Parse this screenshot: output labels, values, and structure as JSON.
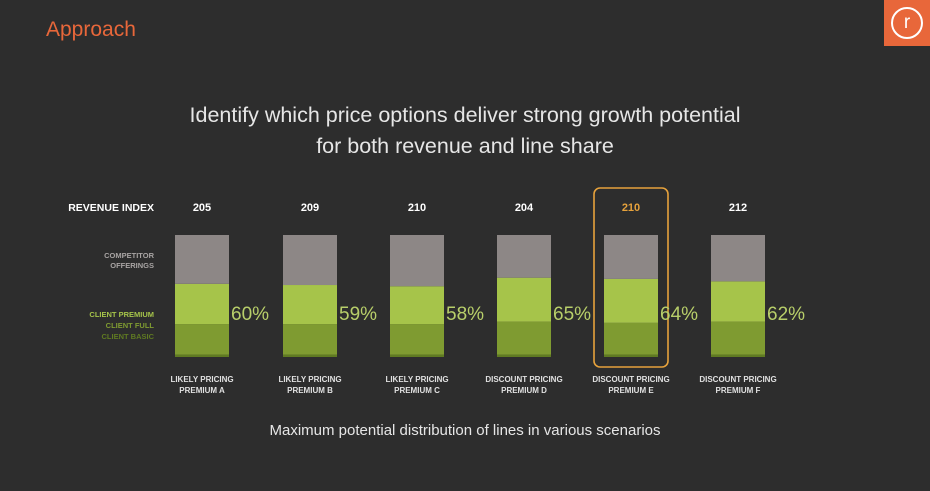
{
  "header": {
    "section_title": "Approach",
    "logo_letter": "r"
  },
  "headline": {
    "line1": "Identify which price options deliver strong growth potential",
    "line2": "for both revenue and line share"
  },
  "footnote": "Maximum potential distribution of lines in various scenarios",
  "colors": {
    "background": "#2d2d2d",
    "accent": "#e8673a",
    "competitor": "#8d8786",
    "client_premium": "#a6c44a",
    "client_full": "#7f9b31",
    "client_basic": "#5f7a22",
    "highlight": "#e6a23c",
    "percent_text": "#b8cf6a",
    "label_text": "#e0e0e0"
  },
  "chart_data": {
    "type": "bar",
    "stacked": true,
    "row_label": "REVENUE INDEX",
    "legend": [
      "COMPETITOR OFFERINGS",
      "CLIENT PREMIUM",
      "CLIENT FULL",
      "CLIENT BASIC"
    ],
    "categories": [
      [
        "LIKELY PRICING",
        "PREMIUM A"
      ],
      [
        "LIKELY PRICING",
        "PREMIUM B"
      ],
      [
        "LIKELY PRICING",
        "PREMIUM C"
      ],
      [
        "DISCOUNT PRICING",
        "PREMIUM D"
      ],
      [
        "DISCOUNT PRICING",
        "PREMIUM E"
      ],
      [
        "DISCOUNT PRICING",
        "PREMIUM F"
      ]
    ],
    "revenue_index": [
      "205",
      "209",
      "210",
      "204",
      "210",
      "212"
    ],
    "highlighted_index": 4,
    "client_share_labels": [
      "60%",
      "59%",
      "58%",
      "65%",
      "64%",
      "62%"
    ],
    "series": [
      {
        "name": "CLIENT BASIC",
        "values": [
          2,
          2,
          2,
          2,
          2,
          2
        ]
      },
      {
        "name": "CLIENT FULL",
        "values": [
          25,
          25,
          25,
          27,
          26,
          27
        ]
      },
      {
        "name": "CLIENT PREMIUM",
        "values": [
          33,
          32,
          31,
          36,
          36,
          33
        ]
      },
      {
        "name": "COMPETITOR OFFERINGS",
        "values": [
          40,
          41,
          42,
          35,
          36,
          38
        ]
      }
    ],
    "ylim": [
      0,
      100
    ]
  }
}
